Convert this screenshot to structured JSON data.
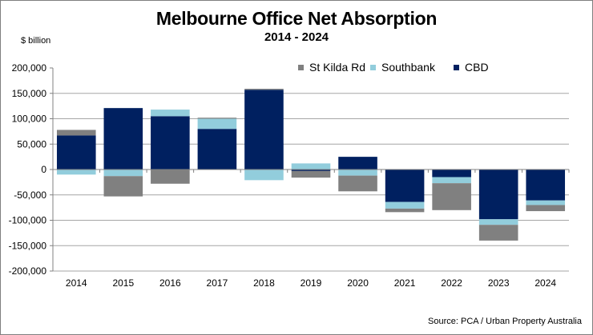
{
  "chart_data": {
    "type": "bar",
    "stacked": true,
    "title": "Melbourne Office Net Absorption",
    "subtitle": "2014 - 2024",
    "ylabel": "$ billion",
    "xlabel": "",
    "ylim": [
      -200000,
      200000
    ],
    "yticks": [
      200000,
      150000,
      100000,
      50000,
      0,
      -50000,
      -100000,
      -150000,
      -200000
    ],
    "ytick_labels": [
      "200,000",
      "150,000",
      "100,000",
      "50,000",
      "0",
      "-50,000",
      "-100,000",
      "-150,000",
      "-200,000"
    ],
    "grid": true,
    "legend_position": "top-right",
    "categories": [
      "2014",
      "2015",
      "2016",
      "2017",
      "2018",
      "2019",
      "2020",
      "2021",
      "2022",
      "2023",
      "2024"
    ],
    "series": [
      {
        "name": "CBD",
        "color": "#002060",
        "values": [
          67000,
          121000,
          105000,
          80000,
          157000,
          -3000,
          25000,
          -64000,
          -15000,
          -98000,
          -61000
        ]
      },
      {
        "name": "Southbank",
        "color": "#92CDDC",
        "values": [
          -10000,
          -13000,
          13000,
          20000,
          -21000,
          12000,
          -12000,
          -13000,
          -12000,
          -11000,
          -9000
        ]
      },
      {
        "name": "St Kilda Rd",
        "color": "#808080",
        "values": [
          11000,
          -40000,
          -28000,
          2000,
          2000,
          -13000,
          -31000,
          -7000,
          -53000,
          -31000,
          -12000
        ]
      }
    ],
    "legend_order": [
      "St Kilda Rd",
      "Southbank",
      "CBD"
    ],
    "source": "Source: PCA / Urban Property Australia"
  }
}
